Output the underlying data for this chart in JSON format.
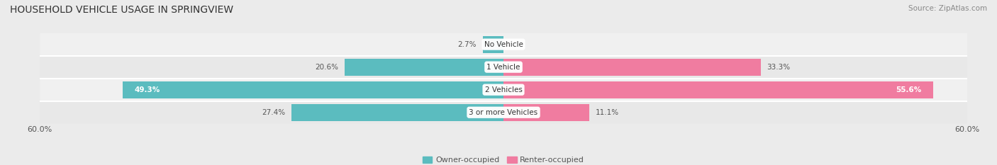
{
  "title": "HOUSEHOLD VEHICLE USAGE IN SPRINGVIEW",
  "source": "Source: ZipAtlas.com",
  "categories": [
    "No Vehicle",
    "1 Vehicle",
    "2 Vehicles",
    "3 or more Vehicles"
  ],
  "owner_values": [
    2.7,
    20.6,
    49.3,
    27.4
  ],
  "renter_values": [
    0.0,
    33.3,
    55.6,
    11.1
  ],
  "owner_color": "#5bbcbf",
  "renter_color": "#f07ca0",
  "owner_label": "Owner-occupied",
  "renter_label": "Renter-occupied",
  "axis_limit": 60.0,
  "background_color": "#ebebeb",
  "row_bg_even": "#e8e8e8",
  "row_bg_odd": "#f0f0f0",
  "label_bg_color": "#ffffff",
  "title_fontsize": 10,
  "source_fontsize": 7.5,
  "tick_fontsize": 8,
  "bar_label_fontsize": 7.5,
  "category_fontsize": 7.5,
  "legend_fontsize": 8
}
